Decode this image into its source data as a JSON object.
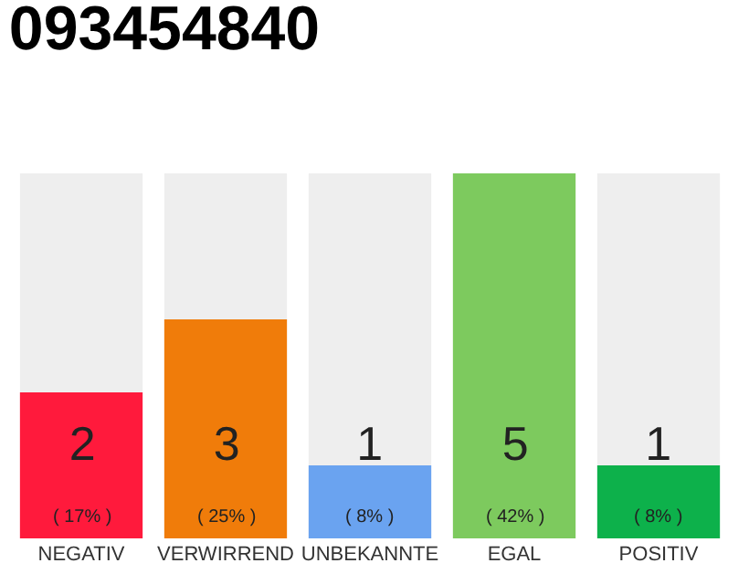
{
  "chart_data": {
    "type": "bar",
    "title": "093454840",
    "categories": [
      "NEGATIV",
      "VERWIRREND",
      "UNBEKANNTE",
      "EGAL",
      "POSITIV"
    ],
    "values": [
      2,
      3,
      1,
      5,
      1
    ],
    "colors": [
      "#ff1a3c",
      "#f07c0a",
      "#6aa3f0",
      "#7dca5e",
      "#0db14b"
    ],
    "value_labels": [
      "2\n( 17% )",
      "3\n( 25% )",
      "1\n( 8% )",
      "5\n( 42% )",
      "1\n( 8% )"
    ],
    "ylim": [
      0,
      5
    ],
    "tick_labels": "x",
    "grid": false,
    "legend": false
  }
}
